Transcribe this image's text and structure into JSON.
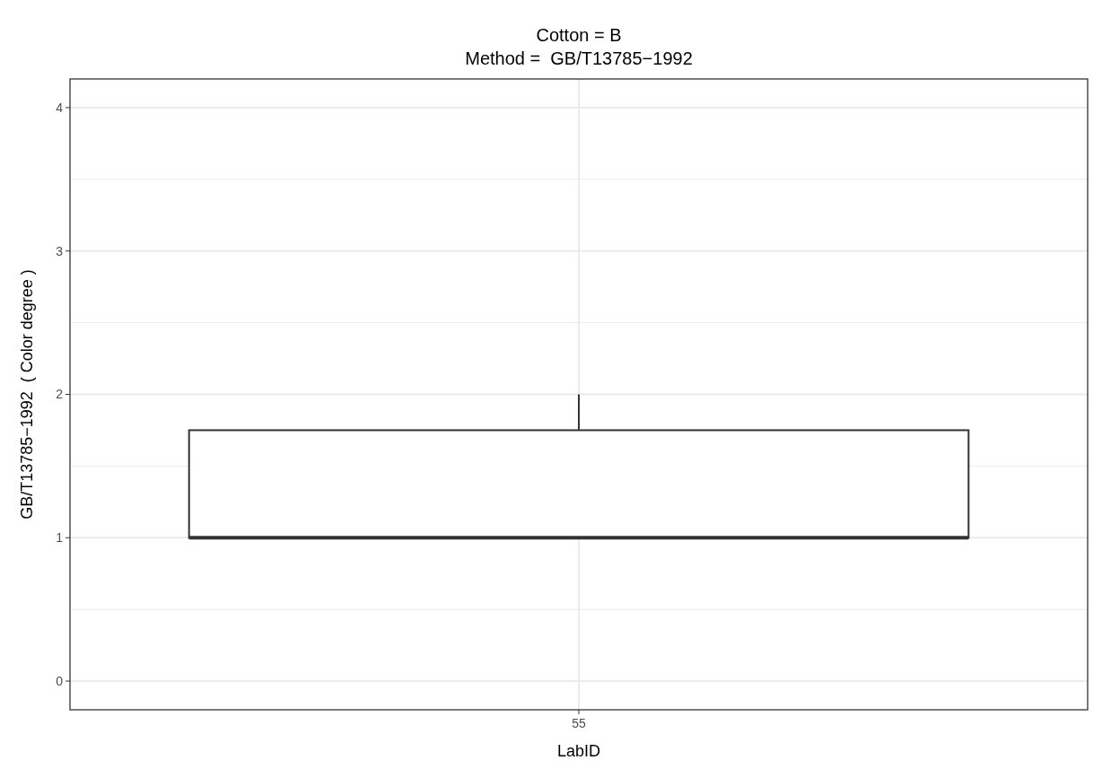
{
  "chart_data": {
    "type": "box",
    "title": "Cotton = B",
    "subtitle": "Method =  GB/T13785−1992",
    "xlabel": "LabID",
    "ylabel": "GB/T13785−1992  ( Color degree )",
    "categories": [
      "55"
    ],
    "boxes": [
      {
        "low": 1,
        "q1": 1,
        "median": 1,
        "q3": 1.75,
        "high": 2
      }
    ],
    "ylim": [
      -0.2,
      4.2
    ],
    "yticks": [
      0,
      1,
      2,
      3,
      4
    ],
    "grid": true
  }
}
